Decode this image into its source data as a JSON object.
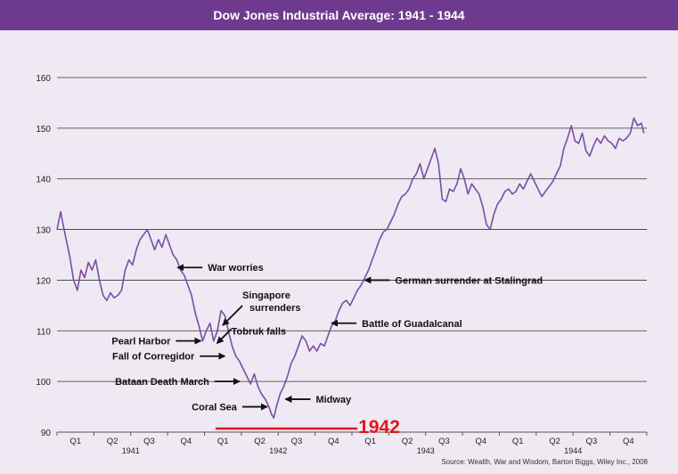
{
  "header": {
    "title": "Dow Jones Industrial Average: 1941 - 1944"
  },
  "source": "Source: Wealth, War and Wisdom, Barton Biggs, Wiley Inc., 2008",
  "colors": {
    "header_bg": "#6e3a8e",
    "plot_bg": "#efe9f3",
    "line": "#7b4ea3",
    "highlight": "#e0161b"
  },
  "chart_data": {
    "type": "line",
    "title": "Dow Jones Industrial Average: 1941 - 1944",
    "xlabel": "",
    "ylabel": "",
    "xlim": [
      0,
      16
    ],
    "ylim": [
      90,
      160
    ],
    "yticks": [
      90,
      100,
      110,
      120,
      130,
      140,
      150,
      160
    ],
    "grid": true,
    "quarter_ticks": [
      "Q1",
      "Q2",
      "Q3",
      "Q4",
      "Q1",
      "Q2",
      "Q3",
      "Q4",
      "Q1",
      "Q2",
      "Q3",
      "Q4",
      "Q1",
      "Q2",
      "Q3",
      "Q4"
    ],
    "years": [
      {
        "label": "1941",
        "x": 2
      },
      {
        "label": "1942",
        "x": 6
      },
      {
        "label": "1943",
        "x": 10
      },
      {
        "label": "1944",
        "x": 14
      }
    ],
    "series": [
      {
        "points": [
          [
            0.0,
            130.0
          ],
          [
            0.1,
            133.5
          ],
          [
            0.15,
            131.5
          ],
          [
            0.25,
            128.0
          ],
          [
            0.35,
            124.5
          ],
          [
            0.45,
            120.0
          ],
          [
            0.55,
            118.0
          ],
          [
            0.65,
            122.0
          ],
          [
            0.75,
            120.5
          ],
          [
            0.85,
            123.5
          ],
          [
            0.95,
            122.0
          ],
          [
            1.05,
            124.0
          ],
          [
            1.15,
            120.0
          ],
          [
            1.25,
            117.0
          ],
          [
            1.35,
            116.0
          ],
          [
            1.45,
            117.5
          ],
          [
            1.55,
            116.5
          ],
          [
            1.65,
            117.0
          ],
          [
            1.75,
            118.0
          ],
          [
            1.85,
            122.0
          ],
          [
            1.95,
            124.0
          ],
          [
            2.05,
            123.0
          ],
          [
            2.15,
            126.0
          ],
          [
            2.25,
            128.0
          ],
          [
            2.35,
            129.0
          ],
          [
            2.45,
            130.0
          ],
          [
            2.55,
            128.0
          ],
          [
            2.65,
            126.0
          ],
          [
            2.75,
            128.0
          ],
          [
            2.85,
            126.5
          ],
          [
            2.95,
            129.0
          ],
          [
            3.05,
            127.0
          ],
          [
            3.15,
            125.0
          ],
          [
            3.25,
            124.0
          ],
          [
            3.35,
            122.0
          ],
          [
            3.45,
            121.0
          ],
          [
            3.55,
            119.0
          ],
          [
            3.65,
            117.0
          ],
          [
            3.75,
            113.5
          ],
          [
            3.85,
            111.0
          ],
          [
            3.95,
            108.0
          ],
          [
            4.05,
            110.0
          ],
          [
            4.15,
            111.5
          ],
          [
            4.25,
            108.0
          ],
          [
            4.35,
            110.0
          ],
          [
            4.45,
            114.0
          ],
          [
            4.55,
            113.0
          ],
          [
            4.65,
            110.0
          ],
          [
            4.75,
            107.0
          ],
          [
            4.85,
            105.0
          ],
          [
            4.95,
            104.0
          ],
          [
            5.05,
            102.5
          ],
          [
            5.15,
            101.0
          ],
          [
            5.25,
            99.5
          ],
          [
            5.35,
            101.5
          ],
          [
            5.45,
            99.0
          ],
          [
            5.55,
            97.5
          ],
          [
            5.65,
            96.5
          ],
          [
            5.75,
            95.0
          ],
          [
            5.82,
            93.5
          ],
          [
            5.88,
            92.8
          ],
          [
            5.95,
            95.0
          ],
          [
            6.05,
            97.5
          ],
          [
            6.15,
            99.0
          ],
          [
            6.25,
            101.0
          ],
          [
            6.35,
            103.5
          ],
          [
            6.45,
            105.0
          ],
          [
            6.55,
            107.0
          ],
          [
            6.65,
            109.0
          ],
          [
            6.75,
            108.0
          ],
          [
            6.85,
            106.0
          ],
          [
            6.95,
            107.0
          ],
          [
            7.05,
            106.0
          ],
          [
            7.15,
            107.5
          ],
          [
            7.25,
            107.0
          ],
          [
            7.35,
            109.0
          ],
          [
            7.45,
            111.0
          ],
          [
            7.55,
            112.0
          ],
          [
            7.65,
            114.0
          ],
          [
            7.75,
            115.5
          ],
          [
            7.85,
            116.0
          ],
          [
            7.95,
            115.0
          ],
          [
            8.05,
            116.5
          ],
          [
            8.15,
            118.0
          ],
          [
            8.25,
            119.0
          ],
          [
            8.35,
            120.5
          ],
          [
            8.45,
            122.0
          ],
          [
            8.55,
            124.0
          ],
          [
            8.65,
            126.0
          ],
          [
            8.75,
            128.0
          ],
          [
            8.85,
            129.5
          ],
          [
            8.95,
            130.0
          ],
          [
            9.05,
            131.5
          ],
          [
            9.15,
            133.0
          ],
          [
            9.25,
            135.0
          ],
          [
            9.35,
            136.5
          ],
          [
            9.45,
            137.0
          ],
          [
            9.55,
            138.0
          ],
          [
            9.65,
            140.0
          ],
          [
            9.75,
            141.0
          ],
          [
            9.85,
            143.0
          ],
          [
            9.95,
            140.0
          ],
          [
            10.05,
            142.0
          ],
          [
            10.15,
            144.0
          ],
          [
            10.25,
            146.0
          ],
          [
            10.35,
            143.0
          ],
          [
            10.45,
            136.0
          ],
          [
            10.55,
            135.5
          ],
          [
            10.65,
            138.0
          ],
          [
            10.75,
            137.5
          ],
          [
            10.85,
            139.0
          ],
          [
            10.95,
            142.0
          ],
          [
            11.05,
            140.0
          ],
          [
            11.15,
            137.0
          ],
          [
            11.25,
            139.0
          ],
          [
            11.35,
            138.0
          ],
          [
            11.45,
            137.0
          ],
          [
            11.55,
            134.5
          ],
          [
            11.65,
            131.0
          ],
          [
            11.75,
            130.0
          ],
          [
            11.85,
            133.0
          ],
          [
            11.95,
            135.0
          ],
          [
            12.05,
            136.0
          ],
          [
            12.15,
            137.5
          ],
          [
            12.25,
            138.0
          ],
          [
            12.35,
            137.0
          ],
          [
            12.45,
            137.5
          ],
          [
            12.55,
            139.0
          ],
          [
            12.65,
            138.0
          ],
          [
            12.75,
            139.5
          ],
          [
            12.85,
            141.0
          ],
          [
            12.95,
            139.5
          ],
          [
            13.05,
            138.0
          ],
          [
            13.15,
            136.5
          ],
          [
            13.25,
            137.5
          ],
          [
            13.35,
            138.5
          ],
          [
            13.45,
            139.5
          ],
          [
            13.55,
            141.0
          ],
          [
            13.65,
            142.5
          ],
          [
            13.75,
            146.0
          ],
          [
            13.85,
            148.0
          ],
          [
            13.95,
            150.5
          ],
          [
            14.05,
            147.5
          ],
          [
            14.15,
            147.0
          ],
          [
            14.25,
            149.0
          ],
          [
            14.35,
            145.5
          ],
          [
            14.45,
            144.5
          ],
          [
            14.55,
            146.5
          ],
          [
            14.65,
            148.0
          ],
          [
            14.75,
            147.0
          ],
          [
            14.85,
            148.5
          ],
          [
            14.95,
            147.5
          ],
          [
            15.05,
            147.0
          ],
          [
            15.15,
            146.0
          ],
          [
            15.25,
            148.0
          ],
          [
            15.35,
            147.5
          ],
          [
            15.45,
            148.0
          ],
          [
            15.55,
            149.0
          ],
          [
            15.65,
            152.0
          ],
          [
            15.75,
            150.5
          ],
          [
            15.85,
            151.0
          ],
          [
            15.92,
            149.0
          ]
        ]
      }
    ],
    "annotations": [
      {
        "text": "War worries",
        "x": 3.22,
        "y": 122.5,
        "side": "right"
      },
      {
        "text": "Singapore surrenders",
        "x": 4.4,
        "y": 112.5,
        "side": "up"
      },
      {
        "text": "Tobruk falls",
        "x": 4.68,
        "y": 110.0,
        "side": "left-of-text"
      },
      {
        "text": "Pearl Harbor",
        "x": 3.95,
        "y": 108.0,
        "side": "left"
      },
      {
        "text": "Fall of Corregidor",
        "x": 4.6,
        "y": 105.0,
        "side": "left"
      },
      {
        "text": "Bataan Death March",
        "x": 5.0,
        "y": 100.0,
        "side": "left"
      },
      {
        "text": "Coral Sea",
        "x": 5.75,
        "y": 95.0,
        "side": "left"
      },
      {
        "text": "Midway",
        "x": 6.15,
        "y": 96.5,
        "side": "right"
      },
      {
        "text": "Battle of Guadalcanal",
        "x": 7.4,
        "y": 111.5,
        "side": "right"
      },
      {
        "text": "German surrender at Stalingrad",
        "x": 8.3,
        "y": 120.0,
        "side": "right"
      }
    ],
    "highlight": {
      "label": "1942",
      "x_start": 4.3,
      "x_end": 8.15,
      "y": 90.7
    }
  }
}
